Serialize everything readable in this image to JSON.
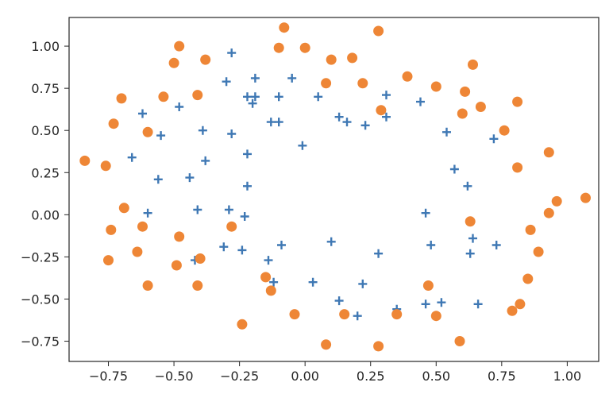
{
  "colors": {
    "plus_series": "#3f78b4",
    "circle_series": "#ee8636",
    "axes": "#262626"
  },
  "chart_data": {
    "type": "scatter",
    "title": "",
    "xlabel": "",
    "ylabel": "",
    "xlim": [
      -0.9,
      1.12
    ],
    "ylim": [
      -0.87,
      1.17
    ],
    "grid": false,
    "xticks": [
      -0.75,
      -0.5,
      -0.25,
      0.0,
      0.25,
      0.5,
      0.75,
      1.0
    ],
    "xtick_labels": [
      "−0.75",
      "−0.50",
      "−0.25",
      "0.00",
      "0.25",
      "0.50",
      "0.75",
      "1.00"
    ],
    "yticks": [
      -0.75,
      -0.5,
      -0.25,
      0.0,
      0.25,
      0.5,
      0.75,
      1.0
    ],
    "ytick_labels": [
      "−0.75",
      "−0.50",
      "−0.25",
      "0.00",
      "0.25",
      "0.50",
      "0.75",
      "1.00"
    ],
    "series": [
      {
        "marker": "plus",
        "color": "#3f78b4",
        "points": [
          [
            -0.28,
            0.96
          ],
          [
            -0.3,
            0.79
          ],
          [
            -0.19,
            0.81
          ],
          [
            -0.05,
            0.81
          ],
          [
            0.05,
            0.7
          ],
          [
            -0.22,
            0.7
          ],
          [
            -0.19,
            0.7
          ],
          [
            -0.2,
            0.66
          ],
          [
            -0.13,
            0.55
          ],
          [
            -0.1,
            0.7
          ],
          [
            -0.1,
            0.55
          ],
          [
            -0.48,
            0.64
          ],
          [
            -0.62,
            0.6
          ],
          [
            -0.55,
            0.47
          ],
          [
            -0.39,
            0.5
          ],
          [
            -0.28,
            0.48
          ],
          [
            -0.01,
            0.41
          ],
          [
            -0.22,
            0.36
          ],
          [
            -0.38,
            0.32
          ],
          [
            -0.66,
            0.34
          ],
          [
            -0.56,
            0.21
          ],
          [
            -0.44,
            0.22
          ],
          [
            -0.22,
            0.17
          ],
          [
            -0.6,
            0.01
          ],
          [
            -0.41,
            0.03
          ],
          [
            -0.29,
            0.03
          ],
          [
            -0.23,
            -0.01
          ],
          [
            -0.31,
            -0.19
          ],
          [
            -0.24,
            -0.21
          ],
          [
            -0.09,
            -0.18
          ],
          [
            -0.42,
            -0.27
          ],
          [
            -0.14,
            -0.27
          ],
          [
            -0.12,
            -0.4
          ],
          [
            0.03,
            -0.4
          ],
          [
            0.1,
            -0.16
          ],
          [
            0.13,
            -0.51
          ],
          [
            0.2,
            -0.6
          ],
          [
            0.22,
            -0.41
          ],
          [
            0.28,
            -0.23
          ],
          [
            0.13,
            0.58
          ],
          [
            0.16,
            0.55
          ],
          [
            0.23,
            0.53
          ],
          [
            0.31,
            0.71
          ],
          [
            0.31,
            0.58
          ],
          [
            0.44,
            0.67
          ],
          [
            0.54,
            0.49
          ],
          [
            0.57,
            0.27
          ],
          [
            0.62,
            0.17
          ],
          [
            0.46,
            0.01
          ],
          [
            0.48,
            -0.18
          ],
          [
            0.64,
            -0.14
          ],
          [
            0.63,
            -0.23
          ],
          [
            0.73,
            -0.18
          ],
          [
            0.72,
            0.45
          ],
          [
            0.46,
            -0.53
          ],
          [
            0.52,
            -0.52
          ],
          [
            0.66,
            -0.53
          ],
          [
            0.35,
            -0.56
          ]
        ]
      },
      {
        "marker": "circle",
        "color": "#ee8636",
        "points": [
          [
            -0.08,
            1.11
          ],
          [
            0.28,
            1.09
          ],
          [
            -0.48,
            1.0
          ],
          [
            -0.1,
            0.99
          ],
          [
            0.0,
            0.99
          ],
          [
            -0.5,
            0.9
          ],
          [
            -0.38,
            0.92
          ],
          [
            0.1,
            0.92
          ],
          [
            0.18,
            0.93
          ],
          [
            0.64,
            0.89
          ],
          [
            0.39,
            0.82
          ],
          [
            0.08,
            0.78
          ],
          [
            0.22,
            0.78
          ],
          [
            -0.7,
            0.69
          ],
          [
            -0.54,
            0.7
          ],
          [
            -0.41,
            0.71
          ],
          [
            0.5,
            0.76
          ],
          [
            0.61,
            0.73
          ],
          [
            0.81,
            0.67
          ],
          [
            0.67,
            0.64
          ],
          [
            -0.73,
            0.54
          ],
          [
            -0.6,
            0.49
          ],
          [
            0.29,
            0.62
          ],
          [
            0.6,
            0.6
          ],
          [
            0.76,
            0.5
          ],
          [
            -0.84,
            0.32
          ],
          [
            -0.76,
            0.29
          ],
          [
            0.93,
            0.37
          ],
          [
            0.81,
            0.28
          ],
          [
            -0.69,
            0.04
          ],
          [
            -0.62,
            -0.07
          ],
          [
            -0.28,
            -0.07
          ],
          [
            0.96,
            0.08
          ],
          [
            1.07,
            0.1
          ],
          [
            0.93,
            0.01
          ],
          [
            0.63,
            -0.04
          ],
          [
            -0.74,
            -0.09
          ],
          [
            -0.48,
            -0.13
          ],
          [
            0.86,
            -0.09
          ],
          [
            -0.64,
            -0.22
          ],
          [
            -0.75,
            -0.27
          ],
          [
            -0.4,
            -0.26
          ],
          [
            -0.49,
            -0.3
          ],
          [
            0.89,
            -0.22
          ],
          [
            -0.6,
            -0.42
          ],
          [
            -0.41,
            -0.42
          ],
          [
            -0.15,
            -0.37
          ],
          [
            -0.13,
            -0.45
          ],
          [
            0.47,
            -0.42
          ],
          [
            0.85,
            -0.38
          ],
          [
            -0.04,
            -0.59
          ],
          [
            0.15,
            -0.59
          ],
          [
            0.35,
            -0.59
          ],
          [
            0.5,
            -0.6
          ],
          [
            0.79,
            -0.57
          ],
          [
            0.82,
            -0.53
          ],
          [
            -0.24,
            -0.65
          ],
          [
            0.08,
            -0.77
          ],
          [
            0.28,
            -0.78
          ],
          [
            0.59,
            -0.75
          ]
        ]
      }
    ]
  }
}
